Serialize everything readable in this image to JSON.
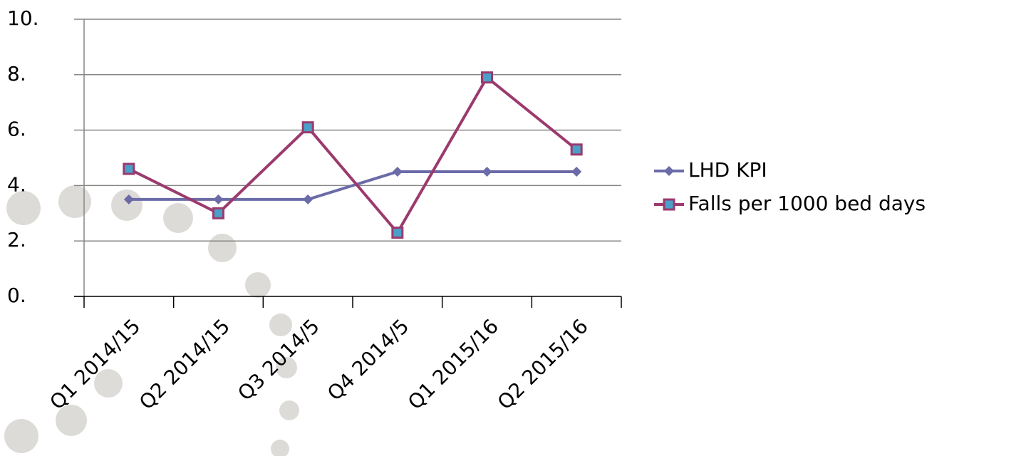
{
  "chart_data": {
    "type": "line",
    "categories": [
      "Q1 2014/15",
      "Q2 2014/15",
      "Q3 2014/5",
      "Q4 2014/5",
      "Q1 2015/16",
      "Q2 2015/16"
    ],
    "series": [
      {
        "name": "LHD KPI",
        "color": "#6b6ba8",
        "marker": "diamond",
        "values": [
          3.5,
          3.5,
          3.5,
          4.5,
          4.5,
          4.5
        ]
      },
      {
        "name": "Falls per 1000 bed days",
        "color": "#9b3a6e",
        "marker": "square",
        "values": [
          4.6,
          3.0,
          6.1,
          2.3,
          7.9,
          5.3
        ]
      }
    ],
    "ylim": [
      0,
      10
    ],
    "yticks": [
      {
        "value": 0,
        "label": "0."
      },
      {
        "value": 2,
        "label": "2."
      },
      {
        "value": 4,
        "label": "4."
      },
      {
        "value": 6,
        "label": "6."
      },
      {
        "value": 8,
        "label": "8."
      },
      {
        "value": 10,
        "label": "10."
      }
    ],
    "grid": true,
    "legend": "right"
  }
}
